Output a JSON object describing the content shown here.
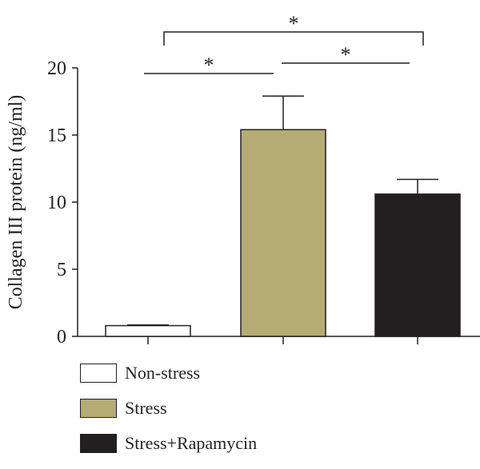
{
  "chart_data": {
    "type": "bar",
    "ylabel": "Collagen III protein (ng/ml)",
    "ylim": [
      0,
      20
    ],
    "yticks": [
      0,
      5,
      10,
      15,
      20
    ],
    "grid": false,
    "legend_position": "bottom-left",
    "series": [
      {
        "name": "Non-stress",
        "value": 0.8,
        "error": 0.05,
        "color": "#ffffff"
      },
      {
        "name": "Stress",
        "value": 15.4,
        "error": 2.5,
        "color": "#b5ab74"
      },
      {
        "name": "Stress+Rapamycin",
        "value": 10.6,
        "error": 1.1,
        "color": "#231f20"
      }
    ],
    "significance": [
      {
        "from": "Non-stress",
        "to": "Stress",
        "label": "*"
      },
      {
        "from": "Stress",
        "to": "Stress+Rapamycin",
        "label": "*"
      },
      {
        "from": "Non-stress",
        "to": "Stress+Rapamycin",
        "label": "*"
      }
    ]
  }
}
